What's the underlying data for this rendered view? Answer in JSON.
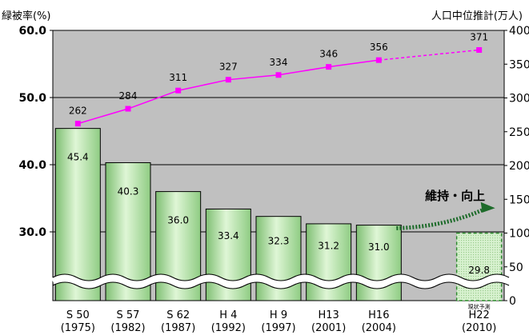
{
  "chart_data": {
    "type": "bar",
    "title": "",
    "ylabel_left": "緑被率(%)",
    "ylabel_right": "人口中位推計(万人)",
    "left_axis": {
      "ticks": [
        "60.0",
        "50.0",
        "40.0",
        "30.0"
      ],
      "tick_values": [
        60,
        50,
        40,
        30
      ],
      "broken_below": 30
    },
    "right_axis": {
      "ticks": [
        "400",
        "350",
        "300",
        "250",
        "200",
        "150",
        "100",
        "50",
        "0"
      ],
      "tick_values": [
        400,
        350,
        300,
        250,
        200,
        150,
        100,
        50,
        0
      ],
      "ylim": [
        0,
        400
      ]
    },
    "categories": [
      {
        "era": "S 50",
        "year": "(1975)"
      },
      {
        "era": "S 57",
        "year": "(1982)"
      },
      {
        "era": "S 62",
        "year": "(1987)"
      },
      {
        "era": "H 4",
        "year": "(1992)"
      },
      {
        "era": "H 9",
        "year": "(1997)"
      },
      {
        "era": "H13",
        "year": "(2001)"
      },
      {
        "era": "H16",
        "year": "(2004)"
      },
      {
        "era": "",
        "year": ""
      },
      {
        "era": "H22",
        "year": "(2010)"
      }
    ],
    "series": [
      {
        "axis": "left",
        "values": [
          45.4,
          40.3,
          36.0,
          33.4,
          32.3,
          31.2,
          31.0,
          null,
          29.8
        ],
        "labels": [
          "45.4",
          "40.3",
          "36.0",
          "33.4",
          "32.3",
          "31.2",
          "31.0",
          "",
          "29.8"
        ],
        "projected_index": 8,
        "color": "#a8e0a0"
      },
      {
        "axis": "right",
        "type": "line",
        "values": [
          262,
          284,
          311,
          327,
          334,
          346,
          356,
          null,
          371
        ],
        "labels": [
          "262",
          "284",
          "311",
          "327",
          "334",
          "346",
          "356",
          "",
          "371"
        ],
        "color": "#ff00ff"
      }
    ],
    "annotations": {
      "arrow_label": "維持・向上",
      "projection_note": "現状予測"
    },
    "plot_background": "#c0c0c0",
    "grid": true
  }
}
